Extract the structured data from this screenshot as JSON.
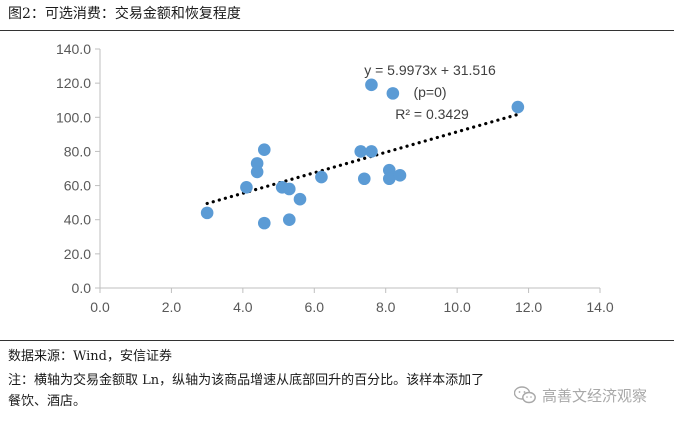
{
  "title": "图2：可选消费：交易金额和恢复程度",
  "source": "数据来源：Wind，安信证券",
  "note_lines": [
    "注：横轴为交易金额取 Ln，纵轴为该商品增速从底部回升的百分比。该样本添加了",
    "餐饮、酒店。"
  ],
  "watermark": "高善文经济观察",
  "colors": {
    "points": "#5b9bd5",
    "trendline": "#000000",
    "axis": "#bfbfbf",
    "text": "#595959"
  },
  "chart_data": {
    "type": "scatter",
    "xlim": [
      0,
      14
    ],
    "ylim": [
      0,
      140
    ],
    "x_ticks": [
      "0.0",
      "2.0",
      "4.0",
      "6.0",
      "8.0",
      "10.0",
      "12.0",
      "14.0"
    ],
    "y_ticks": [
      "0.0",
      "20.0",
      "40.0",
      "60.0",
      "80.0",
      "100.0",
      "120.0",
      "140.0"
    ],
    "grid": false,
    "points": [
      {
        "x": 3.0,
        "y": 44
      },
      {
        "x": 4.1,
        "y": 59
      },
      {
        "x": 4.4,
        "y": 73
      },
      {
        "x": 4.4,
        "y": 68
      },
      {
        "x": 4.6,
        "y": 81
      },
      {
        "x": 4.6,
        "y": 38
      },
      {
        "x": 5.1,
        "y": 59
      },
      {
        "x": 5.3,
        "y": 58
      },
      {
        "x": 5.3,
        "y": 40
      },
      {
        "x": 5.6,
        "y": 52
      },
      {
        "x": 6.2,
        "y": 65
      },
      {
        "x": 7.3,
        "y": 80
      },
      {
        "x": 7.4,
        "y": 64
      },
      {
        "x": 7.6,
        "y": 80
      },
      {
        "x": 7.6,
        "y": 119
      },
      {
        "x": 8.1,
        "y": 69
      },
      {
        "x": 8.1,
        "y": 64
      },
      {
        "x": 8.2,
        "y": 114
      },
      {
        "x": 8.4,
        "y": 66
      },
      {
        "x": 11.7,
        "y": 106
      }
    ],
    "trendline": {
      "slope": 5.9973,
      "intercept": 31.516,
      "x_range": [
        3.0,
        11.7
      ]
    },
    "annotations": [
      "y = 5.9973x + 31.516",
      "(p=0)",
      "R² = 0.3429"
    ]
  }
}
